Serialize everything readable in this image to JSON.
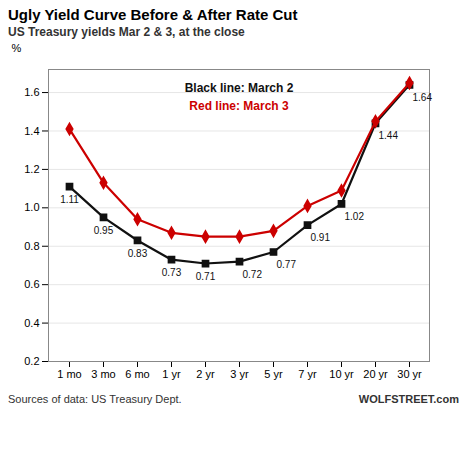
{
  "chart_data": {
    "type": "line",
    "title": "Ugly Yield Curve  Before & After Rate Cut",
    "subtitle": "US Treasury yields Mar 2 & 3, at the close",
    "y_label": "%",
    "annotations": [
      "Sources of data: US Treasury Dept.",
      "WOLFSTREET.com"
    ],
    "categories": [
      "1 mo",
      "3 mo",
      "6 mo",
      "1 yr",
      "2 yr",
      "3 yr",
      "5 yr",
      "7 yr",
      "10 yr",
      "20 yr",
      "30 yr"
    ],
    "series": [
      {
        "name": "Black line: March 2",
        "color": "#111111",
        "marker": "square",
        "data_labels": true,
        "values": [
          1.11,
          0.95,
          0.83,
          0.73,
          0.71,
          0.72,
          0.77,
          0.91,
          1.02,
          1.44,
          1.64
        ]
      },
      {
        "name": "Red line: March 3",
        "color": "#cc0000",
        "marker": "diamond",
        "values": [
          1.41,
          1.13,
          0.94,
          0.87,
          0.85,
          0.85,
          0.88,
          1.01,
          1.09,
          1.45,
          1.65
        ]
      }
    ],
    "ylim": [
      0.2,
      1.72
    ],
    "yticks": [
      0.2,
      0.4,
      0.6,
      0.8,
      {
        "value": 1.0,
        "label": "1.0"
      },
      1.2,
      1.4,
      1.6
    ],
    "grid": true,
    "legend": "top"
  }
}
